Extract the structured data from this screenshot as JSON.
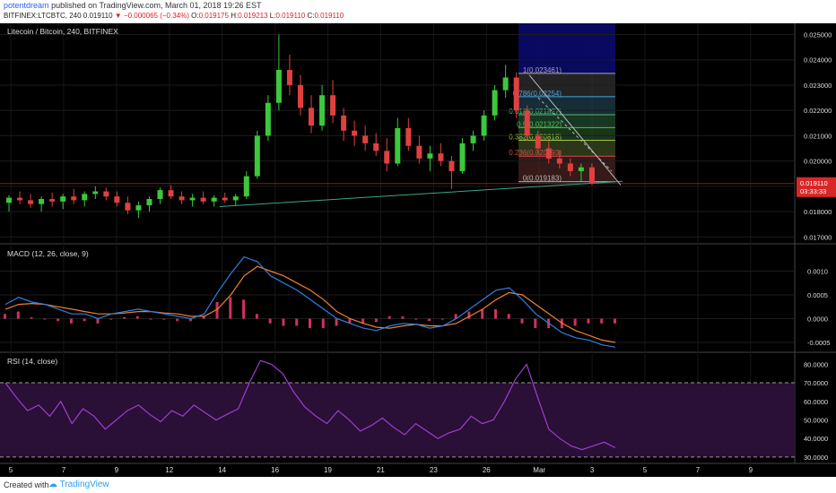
{
  "header": {
    "author": "potentdream",
    "published_text": "published on TradingView.com, March 01, 2018 19:26 EST",
    "symbol_line_prefix": "BITFINEX:LTCBTC, 240",
    "change_text": "▼ −0.000065 (−0.34%)",
    "ohlc_label_o": "O:",
    "ohlc_value_o": "0.019175",
    "ohlc_label_h": "H:",
    "ohlc_value_h": "0.019213",
    "ohlc_label_l": "L:",
    "ohlc_value_l": "0.019110",
    "ohlc_label_c": "C:",
    "ohlc_value_c": "0.019110",
    "symbol_value": "0.019110"
  },
  "footer": {
    "created_with": "Created with",
    "brand": "TradingView"
  },
  "colors": {
    "background": "#000000",
    "up_candle": "#3cc83c",
    "down_candle": "#e04040",
    "macd_line": "#2f7fe0",
    "signal_line": "#f07f30",
    "histogram": "#d03060",
    "rsi_line": "#9c3fd0",
    "rsi_band": "#2a0f36",
    "price_tag": "#d92727",
    "trendline": "#3aa889"
  },
  "chart_data": [
    {
      "type": "candlestick",
      "title": "Litecoin / Bitcoin, 240, BITFINEX",
      "x_tick_labels": [
        "5",
        "7",
        "9",
        "12",
        "14",
        "16",
        "19",
        "21",
        "23",
        "26",
        "Mar",
        "3",
        "5",
        "7",
        "9"
      ],
      "y_tick_labels": [
        "0.025000",
        "0.024000",
        "0.023000",
        "0.022000",
        "0.021000",
        "0.020000",
        "0.019000",
        "0.018000",
        "0.017000"
      ],
      "ylim": [
        0.0168,
        0.0253
      ],
      "last_price": "0.019110",
      "countdown": "03:33:33",
      "candles_sampled": [
        {
          "t": 0,
          "o": 0.01835,
          "h": 0.01865,
          "l": 0.018,
          "c": 0.01855
        },
        {
          "t": 1,
          "o": 0.01855,
          "h": 0.0188,
          "l": 0.0183,
          "c": 0.01845
        },
        {
          "t": 2,
          "o": 0.01845,
          "h": 0.0187,
          "l": 0.01815,
          "c": 0.0183
        },
        {
          "t": 3,
          "o": 0.0183,
          "h": 0.0186,
          "l": 0.018,
          "c": 0.0185
        },
        {
          "t": 4,
          "o": 0.0185,
          "h": 0.01875,
          "l": 0.0182,
          "c": 0.0184
        },
        {
          "t": 5,
          "o": 0.0184,
          "h": 0.0187,
          "l": 0.0181,
          "c": 0.0186
        },
        {
          "t": 6,
          "o": 0.0186,
          "h": 0.0189,
          "l": 0.0183,
          "c": 0.01845
        },
        {
          "t": 7,
          "o": 0.01845,
          "h": 0.0188,
          "l": 0.0182,
          "c": 0.0187
        },
        {
          "t": 8,
          "o": 0.0187,
          "h": 0.019,
          "l": 0.0185,
          "c": 0.0188
        },
        {
          "t": 9,
          "o": 0.0188,
          "h": 0.01895,
          "l": 0.01845,
          "c": 0.0186
        },
        {
          "t": 10,
          "o": 0.0186,
          "h": 0.0188,
          "l": 0.0182,
          "c": 0.01835
        },
        {
          "t": 11,
          "o": 0.01835,
          "h": 0.0186,
          "l": 0.0179,
          "c": 0.01805
        },
        {
          "t": 12,
          "o": 0.01805,
          "h": 0.0184,
          "l": 0.01775,
          "c": 0.01825
        },
        {
          "t": 13,
          "o": 0.01825,
          "h": 0.0186,
          "l": 0.018,
          "c": 0.0185
        },
        {
          "t": 14,
          "o": 0.0185,
          "h": 0.01895,
          "l": 0.0183,
          "c": 0.01885
        },
        {
          "t": 15,
          "o": 0.01885,
          "h": 0.01905,
          "l": 0.0185,
          "c": 0.0186
        },
        {
          "t": 16,
          "o": 0.0186,
          "h": 0.0188,
          "l": 0.0183,
          "c": 0.01845
        },
        {
          "t": 17,
          "o": 0.01845,
          "h": 0.0187,
          "l": 0.0182,
          "c": 0.01855
        },
        {
          "t": 18,
          "o": 0.01855,
          "h": 0.0188,
          "l": 0.0183,
          "c": 0.0184
        },
        {
          "t": 19,
          "o": 0.0184,
          "h": 0.01865,
          "l": 0.0182,
          "c": 0.01855
        },
        {
          "t": 20,
          "o": 0.01855,
          "h": 0.01875,
          "l": 0.01835,
          "c": 0.01845
        },
        {
          "t": 21,
          "o": 0.01845,
          "h": 0.0187,
          "l": 0.01825,
          "c": 0.0186
        },
        {
          "t": 22,
          "o": 0.0186,
          "h": 0.0196,
          "l": 0.0185,
          "c": 0.0194
        },
        {
          "t": 23,
          "o": 0.0194,
          "h": 0.0212,
          "l": 0.0193,
          "c": 0.021
        },
        {
          "t": 24,
          "o": 0.021,
          "h": 0.0226,
          "l": 0.0208,
          "c": 0.0223
        },
        {
          "t": 25,
          "o": 0.0223,
          "h": 0.025,
          "l": 0.022,
          "c": 0.0236
        },
        {
          "t": 26,
          "o": 0.0236,
          "h": 0.0242,
          "l": 0.0226,
          "c": 0.023
        },
        {
          "t": 27,
          "o": 0.023,
          "h": 0.0234,
          "l": 0.0218,
          "c": 0.0221
        },
        {
          "t": 28,
          "o": 0.0221,
          "h": 0.0226,
          "l": 0.0211,
          "c": 0.0214
        },
        {
          "t": 29,
          "o": 0.0214,
          "h": 0.023,
          "l": 0.0212,
          "c": 0.0226
        },
        {
          "t": 30,
          "o": 0.0226,
          "h": 0.0232,
          "l": 0.0215,
          "c": 0.0218
        },
        {
          "t": 31,
          "o": 0.0218,
          "h": 0.0221,
          "l": 0.0208,
          "c": 0.0212
        },
        {
          "t": 32,
          "o": 0.0212,
          "h": 0.0216,
          "l": 0.0206,
          "c": 0.021
        },
        {
          "t": 33,
          "o": 0.021,
          "h": 0.0214,
          "l": 0.0204,
          "c": 0.0207
        },
        {
          "t": 34,
          "o": 0.0207,
          "h": 0.0211,
          "l": 0.0202,
          "c": 0.0204
        },
        {
          "t": 35,
          "o": 0.0204,
          "h": 0.0209,
          "l": 0.0196,
          "c": 0.0199
        },
        {
          "t": 36,
          "o": 0.0199,
          "h": 0.0217,
          "l": 0.0198,
          "c": 0.0213
        },
        {
          "t": 37,
          "o": 0.0213,
          "h": 0.0217,
          "l": 0.0204,
          "c": 0.0206
        },
        {
          "t": 38,
          "o": 0.0206,
          "h": 0.021,
          "l": 0.0199,
          "c": 0.0201
        },
        {
          "t": 39,
          "o": 0.0201,
          "h": 0.0206,
          "l": 0.0196,
          "c": 0.0203
        },
        {
          "t": 40,
          "o": 0.0203,
          "h": 0.0207,
          "l": 0.0198,
          "c": 0.02
        },
        {
          "t": 41,
          "o": 0.02,
          "h": 0.0202,
          "l": 0.0189,
          "c": 0.0196
        },
        {
          "t": 42,
          "o": 0.0196,
          "h": 0.0209,
          "l": 0.0195,
          "c": 0.0207
        },
        {
          "t": 43,
          "o": 0.0207,
          "h": 0.0212,
          "l": 0.0204,
          "c": 0.021
        },
        {
          "t": 44,
          "o": 0.021,
          "h": 0.022,
          "l": 0.0208,
          "c": 0.0218
        },
        {
          "t": 45,
          "o": 0.0218,
          "h": 0.023,
          "l": 0.0216,
          "c": 0.0228
        },
        {
          "t": 46,
          "o": 0.0228,
          "h": 0.0238,
          "l": 0.0225,
          "c": 0.0233
        },
        {
          "t": 47,
          "o": 0.0233,
          "h": 0.0235,
          "l": 0.0217,
          "c": 0.022
        },
        {
          "t": 48,
          "o": 0.022,
          "h": 0.0222,
          "l": 0.0208,
          "c": 0.021
        },
        {
          "t": 49,
          "o": 0.021,
          "h": 0.0212,
          "l": 0.0203,
          "c": 0.0205
        },
        {
          "t": 50,
          "o": 0.0205,
          "h": 0.0208,
          "l": 0.0199,
          "c": 0.0201
        },
        {
          "t": 51,
          "o": 0.0201,
          "h": 0.0204,
          "l": 0.0197,
          "c": 0.0199
        },
        {
          "t": 52,
          "o": 0.0199,
          "h": 0.0201,
          "l": 0.0194,
          "c": 0.0196
        },
        {
          "t": 53,
          "o": 0.0196,
          "h": 0.0199,
          "l": 0.0192,
          "c": 0.01975
        },
        {
          "t": 54,
          "o": 0.01975,
          "h": 0.0199,
          "l": 0.01905,
          "c": 0.01911
        }
      ],
      "fibonacci": [
        {
          "level": "1",
          "price": 0.023461
        },
        {
          "level": "0.786",
          "price": 0.022542
        },
        {
          "level": "0.618",
          "price": 0.021827
        },
        {
          "level": "0.5",
          "price": 0.021322
        },
        {
          "level": "0.382",
          "price": 0.020818
        },
        {
          "level": "0.236",
          "price": 0.020193
        },
        {
          "level": "0",
          "price": 0.019183
        }
      ],
      "fib_labels": [
        {
          "level_text": "1",
          "price_text": "0.023461"
        },
        {
          "level_text": "0.786",
          "price_text": "0.02254"
        },
        {
          "level_text": "0.618",
          "price_text": "0.021827"
        },
        {
          "level_text": "0.5",
          "price_text": "0.021322"
        },
        {
          "level_text": "0.382",
          "price_text": "0.020818"
        },
        {
          "level_text": "0.236",
          "price_text": "0.020193"
        },
        {
          "level_text": "0",
          "price_text": "0.019183"
        }
      ],
      "trendline": {
        "from": {
          "t": 22,
          "price": 0.0182
        },
        "to": {
          "t": 56,
          "price": 0.0192
        }
      }
    },
    {
      "type": "line",
      "title": "MACD (12, 26, close, 9)",
      "y_tick_labels": [
        "0.0010",
        "0.0005",
        "0.0000",
        "-0.0005"
      ],
      "ylim": [
        -0.00065,
        0.0015
      ],
      "series": [
        {
          "name": "MACD",
          "values": [
            0.0003,
            0.00045,
            0.00035,
            0.0003,
            0.0002,
            0.0001,
            0.0001,
            0.0,
            0.0001,
            0.00015,
            0.0002,
            0.00015,
            0.0001,
            5e-05,
            0.0,
            0.0001,
            0.00055,
            0.00095,
            0.0013,
            0.0012,
            0.0009,
            0.00075,
            0.0006,
            0.0004,
            0.0002,
            0.0,
            -0.0001,
            -0.0002,
            -0.00025,
            -0.00015,
            -0.0001,
            -0.00012,
            -0.0002,
            -0.00015,
            0.0,
            0.0002,
            0.0004,
            0.0006,
            0.00065,
            0.0004,
            0.0001,
            -0.0001,
            -0.0003,
            -0.0004,
            -0.00045,
            -0.00055,
            -0.0006
          ]
        },
        {
          "name": "Signal",
          "values": [
            0.0002,
            0.0003,
            0.00032,
            0.0003,
            0.00025,
            0.0002,
            0.00015,
            0.0001,
            0.0001,
            0.00012,
            0.00015,
            0.00015,
            0.00012,
            0.0001,
            5e-05,
            5e-05,
            0.0002,
            0.0005,
            0.0009,
            0.0011,
            0.001,
            0.0009,
            0.00075,
            0.0006,
            0.0004,
            0.00015,
            0.0,
            -0.0001,
            -0.00018,
            -0.0002,
            -0.00015,
            -0.00012,
            -0.00015,
            -0.00015,
            -0.0001,
            5e-05,
            0.0002,
            0.0004,
            0.00055,
            0.0005,
            0.0003,
            0.0001,
            -0.0001,
            -0.00025,
            -0.00035,
            -0.00045,
            -0.0005
          ]
        }
      ]
    },
    {
      "type": "line",
      "title": "RSI (14, close)",
      "y_tick_labels": [
        "80.0000",
        "70.0000",
        "60.0000",
        "50.0000",
        "40.0000",
        "30.0000"
      ],
      "ylim": [
        28,
        85
      ],
      "band": [
        30,
        70
      ],
      "series": [
        {
          "name": "RSI",
          "values": [
            70,
            62,
            55,
            58,
            52,
            60,
            48,
            56,
            52,
            45,
            50,
            55,
            58,
            53,
            49,
            55,
            52,
            58,
            54,
            50,
            53,
            56,
            70,
            82,
            80,
            75,
            65,
            57,
            52,
            48,
            55,
            50,
            44,
            47,
            51,
            46,
            42,
            48,
            44,
            40,
            43,
            45,
            52,
            48,
            50,
            60,
            72,
            80,
            62,
            45,
            40,
            36,
            34,
            36,
            38,
            35
          ]
        }
      ]
    }
  ]
}
